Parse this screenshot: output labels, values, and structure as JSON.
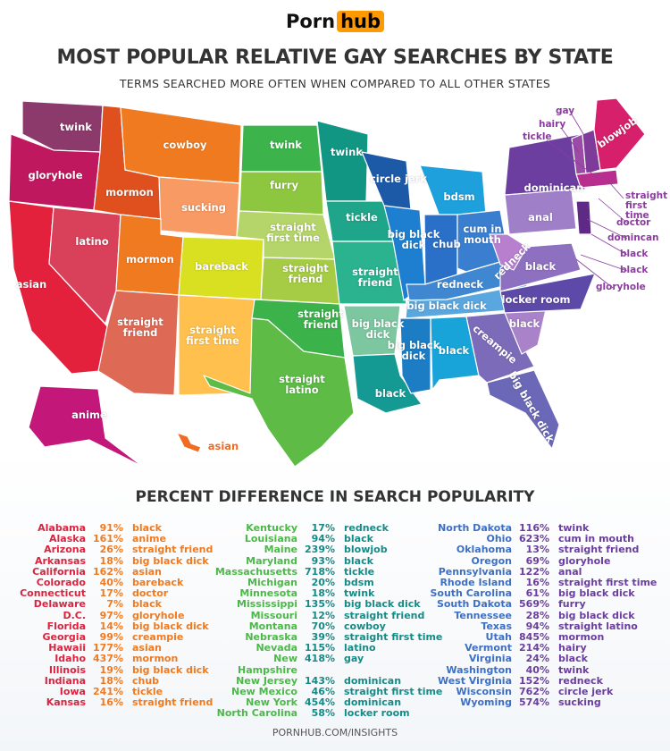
{
  "logo": {
    "part1": "Porn",
    "part2": "hub"
  },
  "title": "MOST POPULAR RELATIVE GAY SEARCHES BY STATE",
  "subtitle": "TERMS SEARCHED MORE OFTEN WHEN COMPARED TO ALL OTHER STATES",
  "map": {
    "labels": [
      "twink",
      "gloryhole",
      "asian",
      "latino",
      "mormon",
      "cowboy",
      "mormon",
      "sucking",
      "twink",
      "furry",
      "straight first time",
      "bareback",
      "straight friend",
      "straight friend",
      "straight first time",
      "straight latino",
      "straight friend",
      "twink",
      "tickle",
      "straight friend",
      "big black dick",
      "black",
      "circle jerk",
      "bdsm",
      "big black dick",
      "chub",
      "cum in mouth",
      "redneck",
      "redneck",
      "big black dick",
      "big black dick",
      "black",
      "creampie",
      "big black dick",
      "black",
      "locker room",
      "black",
      "dominican",
      "anal",
      "blowjob",
      "anime",
      "asian"
    ],
    "callouts": [
      "gay",
      "hairy",
      "tickle",
      "straight first time",
      "doctor",
      "domincan",
      "black",
      "black",
      "gloryhole"
    ]
  },
  "table_title": "PERCENT DIFFERENCE IN SEARCH POPULARITY",
  "colors": {
    "col1_state": "#d9243f",
    "col1_value": "#f07a20",
    "col2_state": "#4cb848",
    "col2_value": "#168a86",
    "col3_state": "#3d6fc4",
    "col3_value": "#6a3d9e",
    "brand": "#ff9900"
  },
  "table": [
    [
      [
        "Alabama",
        "91%",
        "black"
      ],
      [
        "Alaska",
        "161%",
        "anime"
      ],
      [
        "Arizona",
        "26%",
        "straight friend"
      ],
      [
        "Arkansas",
        "18%",
        "big black dick"
      ],
      [
        "California",
        "162%",
        "asian"
      ],
      [
        "Colorado",
        "40%",
        "bareback"
      ],
      [
        "Connecticut",
        "17%",
        "doctor"
      ],
      [
        "Delaware",
        "7%",
        "black"
      ],
      [
        "D.C.",
        "97%",
        "gloryhole"
      ],
      [
        "Florida",
        "14%",
        "big black dick"
      ],
      [
        "Georgia",
        "99%",
        "creampie"
      ],
      [
        "Hawaii",
        "177%",
        "asian"
      ],
      [
        "Idaho",
        "437%",
        "mormon"
      ],
      [
        "Illinois",
        "19%",
        "big black dick"
      ],
      [
        "Indiana",
        "18%",
        "chub"
      ],
      [
        "Iowa",
        "241%",
        "tickle"
      ],
      [
        "Kansas",
        "16%",
        "straight friend"
      ]
    ],
    [
      [
        "Kentucky",
        "17%",
        "redneck"
      ],
      [
        "Louisiana",
        "94%",
        "black"
      ],
      [
        "Maine",
        "239%",
        "blowjob"
      ],
      [
        "Maryland",
        "93%",
        "black"
      ],
      [
        "Massachusetts",
        "718%",
        "tickle"
      ],
      [
        "Michigan",
        "20%",
        "bdsm"
      ],
      [
        "Minnesota",
        "18%",
        "twink"
      ],
      [
        "Mississippi",
        "135%",
        "big black dick"
      ],
      [
        "Missouri",
        "12%",
        "straight friend"
      ],
      [
        "Montana",
        "70%",
        "cowboy"
      ],
      [
        "Nebraska",
        "39%",
        "straight first time"
      ],
      [
        "Nevada",
        "115%",
        "latino"
      ],
      [
        "New Hampshire",
        "418%",
        "gay"
      ],
      [
        "New Jersey",
        "143%",
        "dominican"
      ],
      [
        "New Mexico",
        "46%",
        "straight first time"
      ],
      [
        "New York",
        "454%",
        "dominican"
      ],
      [
        "North Carolina",
        "58%",
        "locker room"
      ]
    ],
    [
      [
        "North Dakota",
        "116%",
        "twink"
      ],
      [
        "Ohio",
        "623%",
        "cum in mouth"
      ],
      [
        "Oklahoma",
        "13%",
        "straight friend"
      ],
      [
        "Oregon",
        "69%",
        "gloryhole"
      ],
      [
        "Pennsylvania",
        "122%",
        "anal"
      ],
      [
        "Rhode Island",
        "16%",
        "straight first time"
      ],
      [
        "South Carolina",
        "61%",
        "big black dick"
      ],
      [
        "South Dakota",
        "569%",
        "furry"
      ],
      [
        "Tennessee",
        "28%",
        "big black dick"
      ],
      [
        "Texas",
        "94%",
        "straight latino"
      ],
      [
        "Utah",
        "845%",
        "mormon"
      ],
      [
        "Vermont",
        "214%",
        "hairy"
      ],
      [
        "Virginia",
        "24%",
        "black"
      ],
      [
        "Washington",
        "40%",
        "twink"
      ],
      [
        "West Virginia",
        "152%",
        "redneck"
      ],
      [
        "Wisconsin",
        "762%",
        "circle jerk"
      ],
      [
        "Wyoming",
        "574%",
        "sucking"
      ]
    ]
  ],
  "footer": "PORNHUB.COM/INSIGHTS"
}
